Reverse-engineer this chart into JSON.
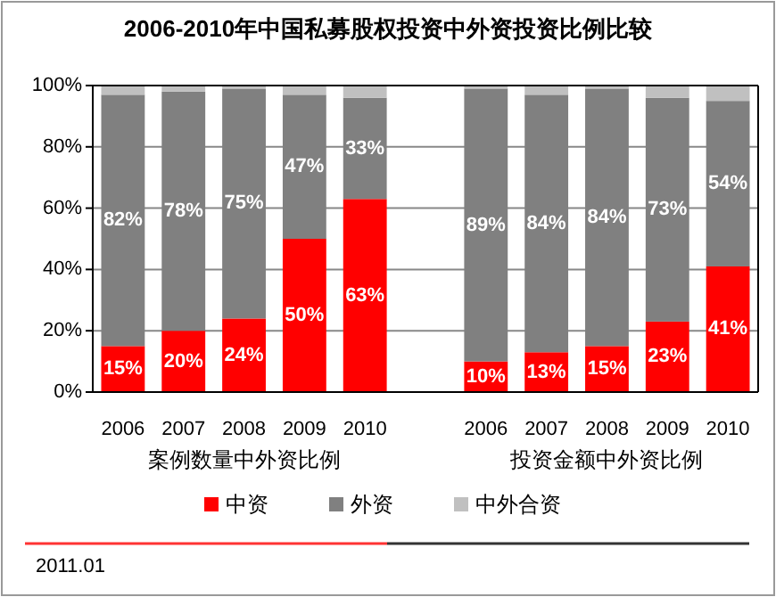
{
  "chart_data": {
    "type": "bar",
    "stacked": true,
    "title": "2006-2010年中国私募股权投资中外资投资比例比较",
    "categories": [
      "2006",
      "2007",
      "2008",
      "2009",
      "2010",
      null,
      "2006",
      "2007",
      "2008",
      "2009",
      "2010"
    ],
    "series": [
      {
        "name": "中资",
        "color": "#ff0000",
        "values": [
          15,
          20,
          24,
          50,
          63,
          null,
          10,
          13,
          15,
          23,
          41
        ],
        "value_labels": [
          "15%",
          "20%",
          "24%",
          "50%",
          "63%",
          null,
          "10%",
          "13%",
          "15%",
          "23%",
          "41%"
        ]
      },
      {
        "name": "外资",
        "color": "#808080",
        "values": [
          82,
          78,
          75,
          47,
          33,
          null,
          89,
          84,
          84,
          73,
          54
        ],
        "value_labels": [
          "82%",
          "78%",
          "75%",
          "47%",
          "33%",
          null,
          "89%",
          "84%",
          "84%",
          "73%",
          "54%"
        ]
      },
      {
        "name": "中外合资",
        "color": "#c0c0c0",
        "values": [
          3,
          2,
          1,
          3,
          4,
          null,
          1,
          3,
          1,
          4,
          5
        ]
      }
    ],
    "ylim": [
      0,
      100
    ],
    "yticks": [
      {
        "value": 0,
        "label": "0%"
      },
      {
        "value": 20,
        "label": "20%"
      },
      {
        "value": 40,
        "label": "40%"
      },
      {
        "value": 60,
        "label": "60%"
      },
      {
        "value": 80,
        "label": "80%"
      },
      {
        "value": 100,
        "label": "100%"
      }
    ],
    "grid": "y",
    "legend": "bottom",
    "annotations": [
      "案例数量中外资比例",
      "投资金额中外资比例",
      "2011.01"
    ]
  }
}
